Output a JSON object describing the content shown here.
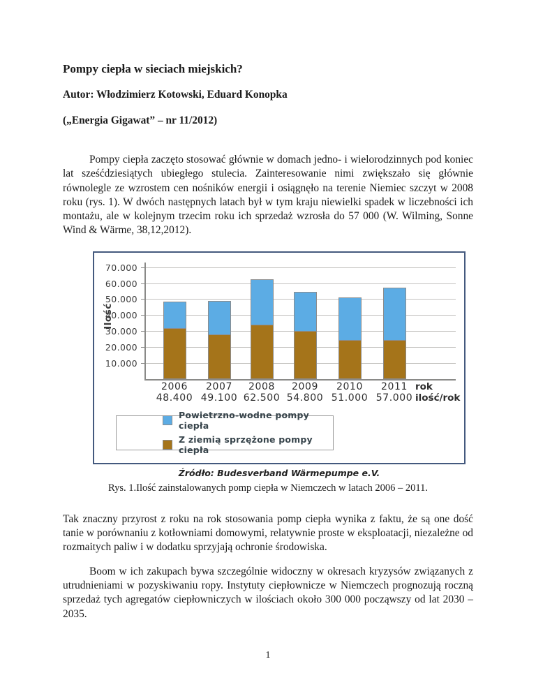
{
  "page": {
    "number": "1"
  },
  "header": {
    "title": "Pompy ciepła w sieciach miejskich?",
    "author": "Autor: Włodzimierz Kotowski, Eduard Konopka",
    "journal": "(„Energia Gigawat” – nr 11/2012)"
  },
  "body": {
    "para1": "Pompy ciepła zaczęto stosować głównie w domach jedno- i wielorodzinnych pod koniec lat sześćdziesiątych ubiegłego stulecia. Zainteresowanie nimi zwiększało się głównie równolegle ze wzrostem cen nośników energii i osiągnęło na terenie Niemiec szczyt w 2008 roku (rys. 1). W dwóch następnych latach był w tym kraju niewielki spadek w liczebności ich montażu, ale w kolejnym trzecim roku ich sprzedaż wzrosła do 57 000 (W. Wilming, Sonne Wind & Wärme, 38,12,2012).",
    "para2": "Tak znaczny przyrost z roku na rok stosowania pomp ciepła wynika z faktu, że są one dość tanie w porównaniu z kotłowniami domowymi, relatywnie proste w eksploatacji, niezależne od rozmaitych paliw i w dodatku sprzyjają ochronie środowiska.",
    "para3": "Boom w ich zakupach bywa szczególnie widoczny w okresach kryzysów związanych z utrudnieniami w pozyskiwaniu ropy. Instytuty ciepłownicze w Niemczech prognozują roczną sprzedaż tych agregatów ciepłowniczych w ilościach około 300 000 począwszy od lat 2030 – 2035."
  },
  "figure": {
    "source": "Źródło: Budesverband Wärmepumpe e.V.",
    "caption": "Rys. 1.Ilość zainstalowanych pomp ciepła w Niemczech w latach 2006 – 2011."
  },
  "chart_data": {
    "type": "bar",
    "stacked": true,
    "title": "",
    "ylabel": "Ilość",
    "ylim": [
      0,
      70000
    ],
    "ytick_step": 10000,
    "ytick_labels": [
      "10.000",
      "20.000",
      "30.000",
      "40.000",
      "50.000",
      "60.000",
      "70.000"
    ],
    "categories": [
      "2006",
      "2007",
      "2008",
      "2009",
      "2010",
      "2011"
    ],
    "series": [
      {
        "name": "Z ziemią sprzężone pompy ciepła",
        "color": "#A5741A",
        "values": [
          32000,
          28000,
          34000,
          30000,
          24500,
          24500
        ]
      },
      {
        "name": "Powietrzno-wodne pompy ciepła",
        "color": "#5CACE4",
        "values": [
          16400,
          21100,
          28500,
          24800,
          26500,
          32500
        ]
      }
    ],
    "totals": [
      48400,
      49100,
      62500,
      54800,
      51000,
      57000
    ],
    "totals_labels": [
      "48.400",
      "49.100",
      "62.500",
      "54.800",
      "51.000",
      "57.000"
    ],
    "x_axis_label": "rok",
    "totals_axis_label": "ilość/rok",
    "grid": true,
    "legend_position": "bottom-left-box",
    "legend": [
      {
        "label": "Powietrzno-wodne pompy ciepła",
        "color": "#5CACE4"
      },
      {
        "label": "Z ziemią sprzężone pompy ciepła",
        "color": "#A5741A"
      }
    ]
  }
}
